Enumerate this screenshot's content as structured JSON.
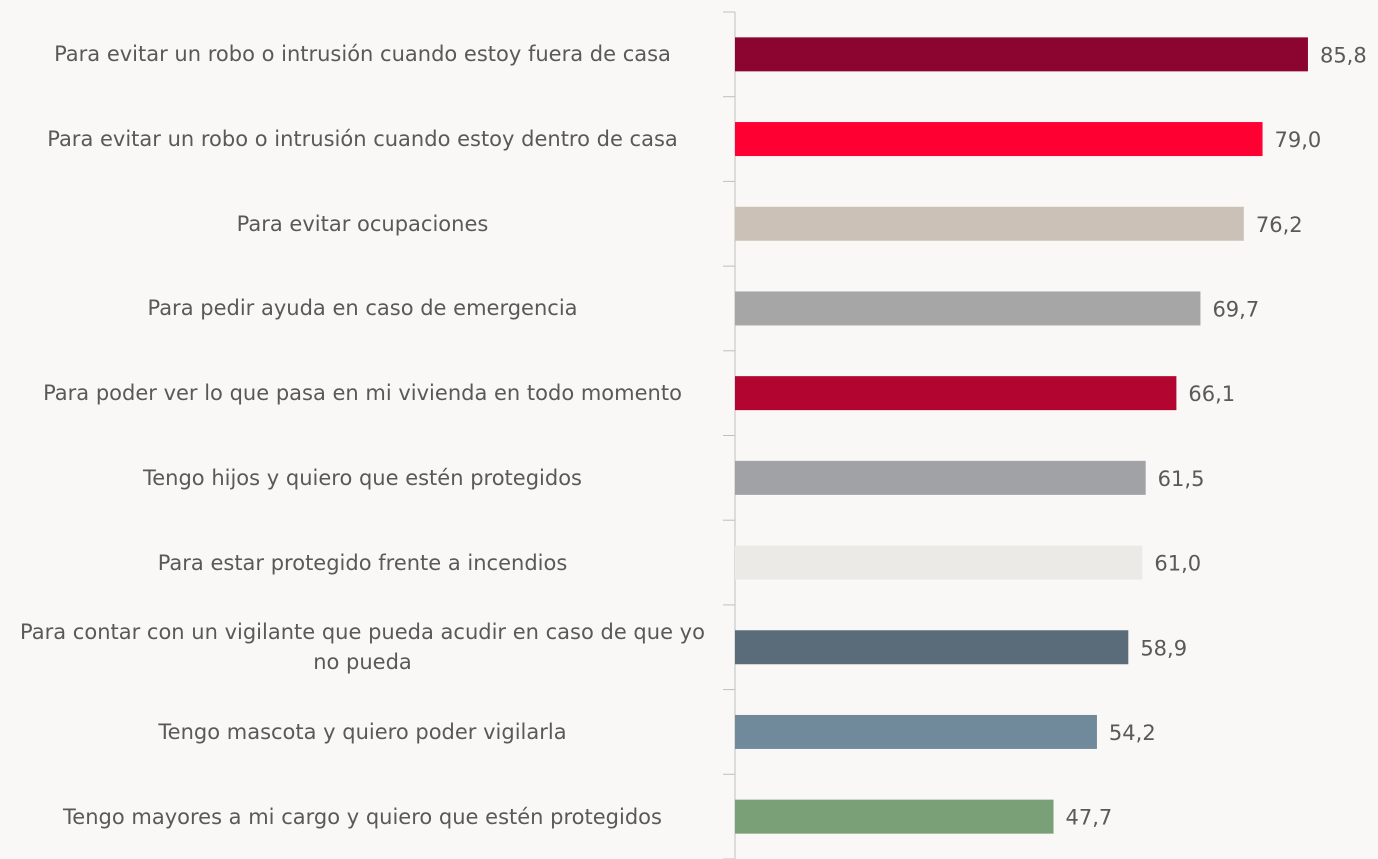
{
  "chart_data": {
    "type": "bar",
    "orientation": "horizontal",
    "categories": [
      "Para evitar un robo o intrusión cuando estoy fuera de casa",
      "Para evitar un robo o intrusión cuando estoy dentro de casa",
      "Para evitar ocupaciones",
      "Para pedir ayuda en caso de emergencia",
      "Para poder ver lo que pasa en mi vivienda en todo momento",
      "Tengo hijos y quiero que estén protegidos",
      "Para estar protegido frente a incendios",
      "Para contar con un vigilante que pueda acudir en caso de que yo no pueda",
      "Tengo mascota y quiero poder vigilarla",
      "Tengo mayores a mi cargo y quiero que estén protegidos"
    ],
    "values": [
      85.8,
      79.0,
      76.2,
      69.7,
      66.1,
      61.5,
      61.0,
      58.9,
      54.2,
      47.7
    ],
    "value_labels": [
      "85,8",
      "79,0",
      "76,2",
      "69,7",
      "66,1",
      "61,5",
      "61,0",
      "58,9",
      "54,2",
      "47,7"
    ],
    "colors": [
      "#8c0430",
      "#ff0033",
      "#cbc1b6",
      "#a6a6a6",
      "#b2052f",
      "#a0a2a6",
      "#ebeae6",
      "#5a6b79",
      "#718a9b",
      "#7aa078"
    ],
    "xlim": [
      0,
      90
    ]
  }
}
